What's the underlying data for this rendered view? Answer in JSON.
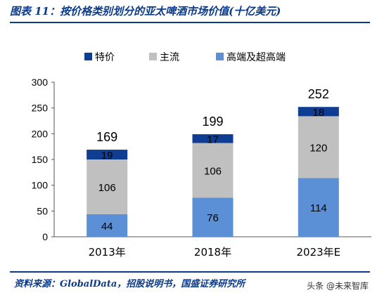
{
  "header": {
    "title": "图表 11：按价格类别划分的亚太啤酒市场价值(十亿美元)"
  },
  "footer": {
    "source": "资料来源：GlobalData，招股说明书，国盛证券研究所",
    "watermark": "头条 @未来智库"
  },
  "colors": {
    "premium": "#0e3d91",
    "mainstream": "#c0c0c0",
    "high": "#5b8fd6",
    "rule": "#0b3a8a"
  },
  "chart_data": {
    "type": "bar",
    "stacked": true,
    "categories": [
      "2013年",
      "2018年",
      "2023年E"
    ],
    "series": [
      {
        "name": "高端及超高端",
        "values": [
          44,
          76,
          114
        ],
        "color": "#5b8fd6"
      },
      {
        "name": "主流",
        "values": [
          106,
          106,
          120
        ],
        "color": "#c0c0c0"
      },
      {
        "name": "特价",
        "values": [
          19,
          17,
          18
        ],
        "color": "#0e3d91"
      }
    ],
    "totals": [
      169,
      199,
      252
    ],
    "legend_order": [
      "特价",
      "主流",
      "高端及超高端"
    ],
    "yticks": [
      0,
      50,
      100,
      150,
      200,
      250,
      300
    ],
    "ylim": [
      0,
      300
    ],
    "legend": "top",
    "grid": false
  }
}
